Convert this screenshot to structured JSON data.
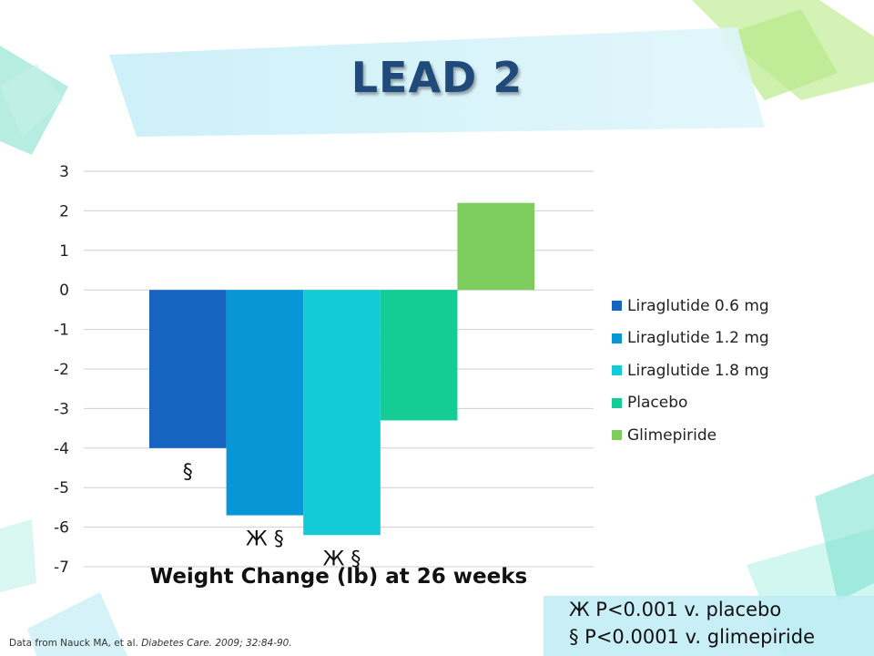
{
  "slide": {
    "title": "LEAD 2"
  },
  "chart_data": {
    "type": "bar",
    "xlabel": "Weight Change (lb) at 26 weeks",
    "ylim": [
      -7,
      3
    ],
    "yticks": [
      "3",
      "2",
      "1",
      "0",
      "-1",
      "-2",
      "-3",
      "-4",
      "-5",
      "-6",
      "-7"
    ],
    "grid": true,
    "legend_position": "right",
    "series": [
      {
        "name": "Liraglutide 0.6 mg",
        "value": -4.0,
        "color": "#1565c0",
        "annotation": "§"
      },
      {
        "name": "Liraglutide 1.2 mg",
        "value": -5.7,
        "color": "#0897d6",
        "annotation": "Ж §"
      },
      {
        "name": "Liraglutide 1.8 mg",
        "value": -6.2,
        "color": "#12cbd6",
        "annotation": "Ж §"
      },
      {
        "name": "Placebo",
        "value": -3.3,
        "color": "#14cc94",
        "annotation": ""
      },
      {
        "name": "Glimepiride",
        "value": 2.2,
        "color": "#7ccc5e",
        "annotation": ""
      }
    ]
  },
  "footnotes": {
    "line1": "Ж P<0.001 v. placebo",
    "line2": "§ P<0.0001 v. glimepiride"
  },
  "citation": {
    "prefix": "Data from Nauck MA, et al. ",
    "journal": "Diabetes Care. 2009; 32:84-90."
  }
}
